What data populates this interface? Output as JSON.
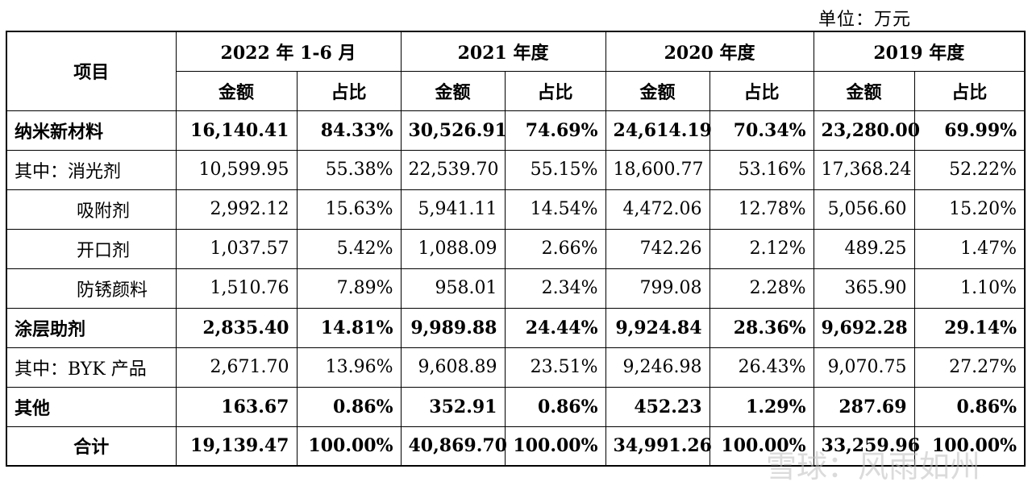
{
  "unit_label": "单位：万元",
  "table": {
    "item_header": "项目",
    "periods": [
      "2022 年 1-6 月",
      "2021 年度",
      "2020 年度",
      "2019 年度"
    ],
    "sub_headers": {
      "amount": "金额",
      "ratio": "占比"
    },
    "rows": [
      {
        "label": "纳米新材料",
        "bold": true,
        "indent": false,
        "cells": [
          "16,140.41",
          "84.33%",
          "30,526.91",
          "74.69%",
          "24,614.19",
          "70.34%",
          "23,280.00",
          "69.99%"
        ]
      },
      {
        "label": "其中：消光剂",
        "bold": false,
        "indent": false,
        "cells": [
          "10,599.95",
          "55.38%",
          "22,539.70",
          "55.15%",
          "18,600.77",
          "53.16%",
          "17,368.24",
          "52.22%"
        ]
      },
      {
        "label": "吸附剂",
        "bold": false,
        "indent": true,
        "cells": [
          "2,992.12",
          "15.63%",
          "5,941.11",
          "14.54%",
          "4,472.06",
          "12.78%",
          "5,056.60",
          "15.20%"
        ]
      },
      {
        "label": "开口剂",
        "bold": false,
        "indent": true,
        "cells": [
          "1,037.57",
          "5.42%",
          "1,088.09",
          "2.66%",
          "742.26",
          "2.12%",
          "489.25",
          "1.47%"
        ]
      },
      {
        "label": "防锈颜料",
        "bold": false,
        "indent": true,
        "cells": [
          "1,510.76",
          "7.89%",
          "958.01",
          "2.34%",
          "799.08",
          "2.28%",
          "365.90",
          "1.10%"
        ]
      },
      {
        "label": "涂层助剂",
        "bold": true,
        "indent": false,
        "cells": [
          "2,835.40",
          "14.81%",
          "9,989.88",
          "24.44%",
          "9,924.84",
          "28.36%",
          "9,692.28",
          "29.14%"
        ]
      },
      {
        "label": "其中：BYK 产品",
        "bold": false,
        "indent": false,
        "cells": [
          "2,671.70",
          "13.96%",
          "9,608.89",
          "23.51%",
          "9,246.98",
          "26.43%",
          "9,070.75",
          "27.27%"
        ]
      },
      {
        "label": "其他",
        "bold": true,
        "indent": false,
        "cells": [
          "163.67",
          "0.86%",
          "352.91",
          "0.86%",
          "452.23",
          "1.29%",
          "287.69",
          "0.86%"
        ]
      },
      {
        "label": "合计",
        "bold": true,
        "indent": false,
        "centered": true,
        "cells": [
          "19,139.47",
          "100.00%",
          "40,869.70",
          "100.00%",
          "34,991.26",
          "100.00%",
          "33,259.96",
          "100.00%"
        ]
      }
    ]
  },
  "watermark": "雪球：风雨如州"
}
